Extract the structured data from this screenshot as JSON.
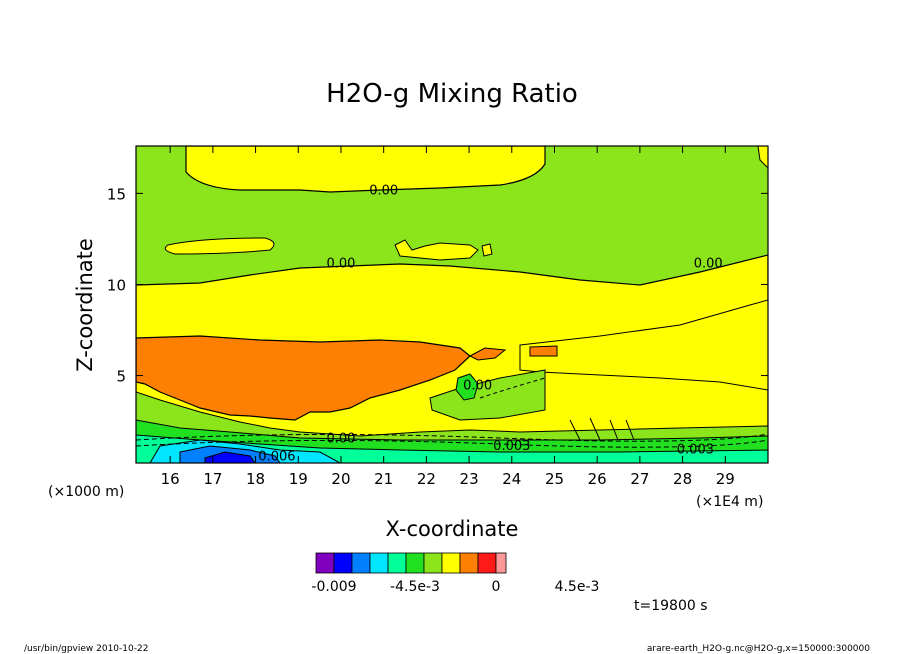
{
  "chart_data": {
    "type": "heatmap",
    "title": "H2O-g Mixing Ratio",
    "xlabel": "X-coordinate",
    "ylabel": "Z-coordinate",
    "x_units": "(×1E4 m)",
    "y_units": "(×1000 m)",
    "xlim": [
      15.2,
      30.0
    ],
    "ylim": [
      0.2,
      17.6
    ],
    "x_ticks": [
      16,
      17,
      18,
      19,
      20,
      21,
      22,
      23,
      24,
      25,
      26,
      27,
      28,
      29
    ],
    "y_ticks": [
      5,
      10,
      15
    ],
    "grid": false,
    "contour_labels": [
      {
        "text": "0.00",
        "x": 21.0,
        "z": 15.2
      },
      {
        "text": "0.00",
        "x": 20.0,
        "z": 11.2
      },
      {
        "text": "0.00",
        "x": 28.6,
        "z": 11.2
      },
      {
        "text": "0.00",
        "x": 23.2,
        "z": 4.5
      },
      {
        "text": "0.00",
        "x": 20.0,
        "z": 1.6
      },
      {
        "text": "0.003",
        "x": 24.0,
        "z": 1.2
      },
      {
        "text": "0.003",
        "x": 28.3,
        "z": 1.0
      },
      {
        "text": "0.006",
        "x": 18.5,
        "z": 0.6
      }
    ],
    "colorbar": {
      "colors": [
        "#7f00bf",
        "#0000ff",
        "#0080ff",
        "#00e6ff",
        "#00ff99",
        "#20e020",
        "#8ce51a",
        "#ffff00",
        "#ff8000",
        "#ff1a1a",
        "#ff9999"
      ],
      "tick_labels": [
        "-0.009",
        "-4.5e-3",
        "0",
        "4.5e-3"
      ]
    },
    "time_label": "t=19800 s"
  },
  "footer": {
    "left": "/usr/bin/gpview   2010-10-22",
    "right": "arare-earth_H2O-g.nc@H2O-g,x=150000:300000"
  }
}
